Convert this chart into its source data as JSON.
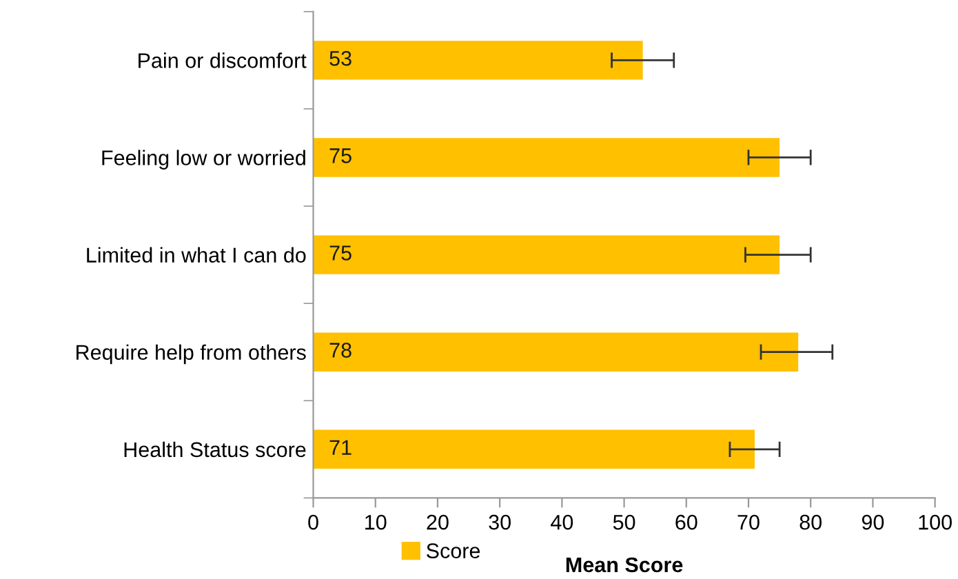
{
  "chart_data": {
    "type": "bar",
    "orientation": "horizontal",
    "xlabel": "Mean Score",
    "categories": [
      "Pain or discomfort",
      "Feeling low or worried",
      "Limited in what I can do",
      "Require help from others",
      "Health Status score"
    ],
    "series": [
      {
        "name": "Score",
        "color": "#ffc000",
        "values": [
          53,
          75,
          75,
          78,
          71
        ],
        "errors": [
          [
            48,
            58
          ],
          [
            70,
            80
          ],
          [
            69.5,
            80
          ],
          [
            72,
            83.5
          ],
          [
            67,
            75
          ]
        ]
      }
    ],
    "xlim": [
      0,
      100
    ],
    "xticks": [
      0,
      10,
      20,
      30,
      40,
      50,
      60,
      70,
      80,
      90,
      100
    ],
    "data_labels": true,
    "grid": false,
    "legend": "bottom"
  }
}
